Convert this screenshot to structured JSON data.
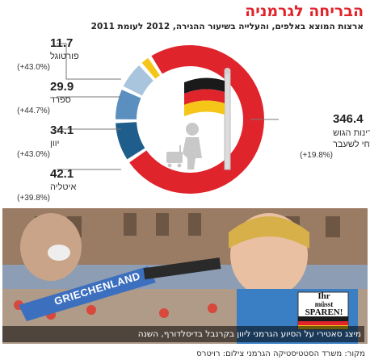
{
  "header": {
    "title": "הבריחה לגרמניה",
    "subtitle": "ארצות המוצא באלפים, והעלייה בשיעור ההגירה, 2012 לעומת 2011"
  },
  "chart_data": {
    "type": "pie",
    "style": "donut",
    "colors": {
      "portugal": "#f5c518",
      "spain": "#a9c4dd",
      "greece": "#5b8fbf",
      "italy": "#1f5d8c",
      "eastern_bloc": "#e0242c",
      "gap": "#ffffff"
    },
    "slices": [
      {
        "key": "portugal",
        "name": "פורטוגל",
        "value": 11.7,
        "change": "(+43.0%)"
      },
      {
        "key": "spain",
        "name": "ספרד",
        "value": 29.9,
        "change": "(+44.7%)"
      },
      {
        "key": "greece",
        "name": "יוון",
        "value": 34.1,
        "change": "(+43.0%)"
      },
      {
        "key": "italy",
        "name": "איטליה",
        "value": 42.1,
        "change": "(+39.8%)"
      },
      {
        "key": "eastern_bloc",
        "name_line1": "מדינות הגוש",
        "name_line2": "המזרחי לשעבר",
        "value": 346.4,
        "change": "(+19.8%)"
      }
    ],
    "icons": [
      "germany-flag-icon",
      "traveler-with-suitcase-icon"
    ]
  },
  "photo": {
    "sign_left": "GRIECHENLAND",
    "sign_right_line1": "Ihr",
    "sign_right_line2": "müsst",
    "sign_right_line3": "SPAREN!",
    "caption": "מיצג סאטירי על הסיוע הגרמני ליוון בקרנבל בדיסלדורף, השנה"
  },
  "footer": {
    "source": "מקור: משרד הסטטיסטיקה הגרמני   צילום: רויטרס"
  }
}
